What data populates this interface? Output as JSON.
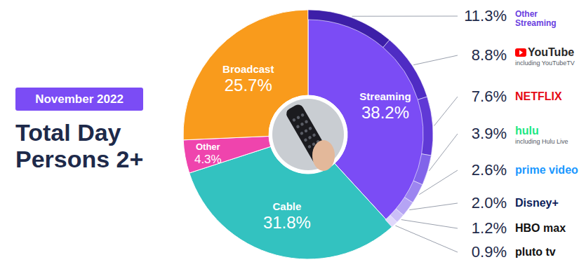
{
  "chart_data": {
    "type": "pie",
    "title": "Total Day Persons 2+",
    "subtitle": "November 2022",
    "categories": [
      "Streaming",
      "Cable",
      "Other",
      "Broadcast"
    ],
    "values": [
      38.2,
      31.8,
      4.3,
      25.7
    ],
    "value_labels": [
      "38.2%",
      "31.8%",
      "4.3%",
      "25.7%"
    ],
    "colors": [
      "#7b4cf5",
      "#33c2c0",
      "#ef44ad",
      "#f99b1c"
    ],
    "data_labels": true,
    "sub_categories": [
      "Other Streaming",
      "YouTube",
      "NETFLIX",
      "hulu",
      "prime video",
      "Disney+",
      "HBO max",
      "pluto tv"
    ],
    "sub_notes": [
      null,
      "including YouTubeTV",
      null,
      "including Hulu Live",
      null,
      null,
      null,
      null
    ],
    "sub_values": [
      11.3,
      8.8,
      7.6,
      3.9,
      2.6,
      2.0,
      1.2,
      0.9
    ],
    "sub_value_labels": [
      "11.3%",
      "8.8%",
      "7.6%",
      "3.9%",
      "2.6%",
      "2.0%",
      "1.2%",
      "0.9%"
    ],
    "sub_colors": [
      "#3d1fa8",
      "#4f2cc4",
      "#6039d6",
      "#8164ea",
      "#9c85f0",
      "#b5a4f4",
      "#cbbff7",
      "#e0d8fb"
    ],
    "sub_label_colors": [
      "#6a3fe0",
      "#282828",
      "#e50914",
      "#1ce783",
      "#1a98ff",
      "#0b1d5a",
      "#111111",
      "#111111"
    ]
  }
}
